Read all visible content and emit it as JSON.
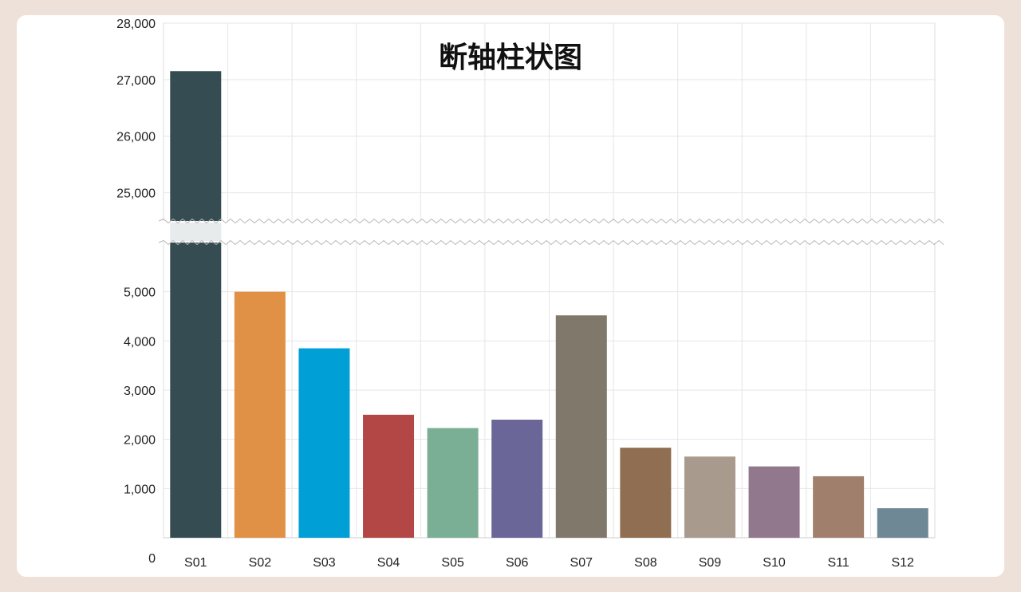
{
  "chart_data": {
    "type": "bar",
    "title": "断轴柱状图",
    "xlabel": "",
    "ylabel": "",
    "broken_axis": true,
    "lower_ylim": [
      0,
      6000
    ],
    "upper_ylim": [
      24500,
      28000
    ],
    "lower_ticks": [
      0,
      1000,
      2000,
      3000,
      4000,
      5000
    ],
    "upper_ticks": [
      25000,
      26000,
      27000,
      28000
    ],
    "categories": [
      "S01",
      "S02",
      "S03",
      "S04",
      "S05",
      "S06",
      "S07",
      "S08",
      "S09",
      "S10",
      "S11",
      "S12"
    ],
    "values": [
      27150,
      5000,
      3850,
      2500,
      2230,
      2400,
      4520,
      1830,
      1650,
      1450,
      1250,
      600
    ],
    "colors": [
      "#354d52",
      "#e09146",
      "#00a0d6",
      "#b34746",
      "#7aaf95",
      "#6b6698",
      "#80786a",
      "#8f6e51",
      "#a89b8d",
      "#91788c",
      "#a0806d",
      "#6f8896"
    ],
    "grid": true,
    "legend": "none"
  }
}
